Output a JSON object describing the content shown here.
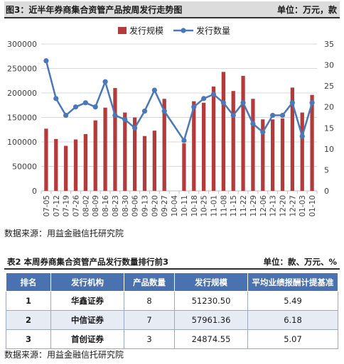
{
  "header": {
    "title": "图3：近半年券商集合资管产品按周发行走势图",
    "unit": "单位：万元，款"
  },
  "chart_data": {
    "type": "bar",
    "title": "图3：近半年券商集合资管产品按周发行走势图",
    "categories": [
      "07-05",
      "07-12",
      "07-19",
      "07-26",
      "08-02",
      "08-09",
      "08-16",
      "08-23",
      "08-30",
      "09-06",
      "09-13",
      "09-20",
      "09-27",
      "10-04",
      "10-11",
      "10-18",
      "10-25",
      "11-01",
      "11-08",
      "11-15",
      "11-22",
      "11-29",
      "12-06",
      "12-13",
      "12-20",
      "12-27",
      "01-03",
      "01-10"
    ],
    "series": [
      {
        "name": "发行规模",
        "type": "bar",
        "axis": "left",
        "color": "#b33b3b",
        "values": [
          127000,
          106000,
          92000,
          105000,
          116000,
          144000,
          170000,
          210000,
          160000,
          150000,
          112000,
          123000,
          188000,
          0,
          97000,
          183000,
          180000,
          213000,
          243000,
          204000,
          235000,
          188000,
          146000,
          146000,
          148000,
          211000,
          160000,
          196000
        ]
      },
      {
        "name": "发行数量",
        "type": "line",
        "axis": "right",
        "color": "#4a78b8",
        "values": [
          31,
          22,
          18,
          20,
          21,
          20,
          26,
          18,
          17,
          15,
          19,
          24,
          19,
          null,
          12,
          20,
          22,
          23,
          21,
          18,
          21,
          16,
          14,
          18,
          18,
          21,
          13,
          21
        ]
      }
    ],
    "left_axis": {
      "min": 0,
      "max": 300000,
      "ticks": [
        0,
        50000,
        100000,
        150000,
        200000,
        250000,
        300000
      ]
    },
    "right_axis": {
      "min": 0,
      "max": 35,
      "ticks": [
        0,
        5,
        10,
        15,
        20,
        25,
        30,
        35
      ]
    },
    "legend": "top",
    "grid": true
  },
  "source1": "数据来源：用益金融信托研究院",
  "table": {
    "title": "表2 本周券商集合资管产品发行数量排行前3",
    "unit": "单位：款、万元、%",
    "columns": [
      "排名",
      "发行机构",
      "产品数量",
      "发行规模",
      "平均业绩报酬计提基准"
    ],
    "rows": [
      [
        "1",
        "华鑫证券",
        "8",
        "51230.50",
        "5.49"
      ],
      [
        "2",
        "中信证券",
        "7",
        "57961.36",
        "6.18"
      ],
      [
        "3",
        "首创证券",
        "3",
        "24874.55",
        "5.07"
      ]
    ]
  },
  "source2": "数据来源：用益金融信托研究院"
}
